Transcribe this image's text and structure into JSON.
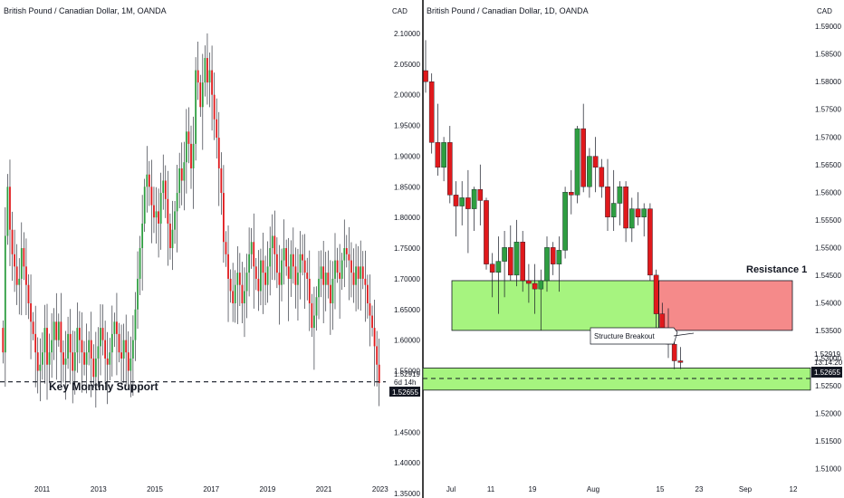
{
  "colors": {
    "up": "#2e9e41",
    "down": "#e0191c",
    "wick": "#131722",
    "support_fill": "#7fe85f",
    "resistance_fill": "#f27373",
    "divider": "#000000",
    "price_label_bg": "#131722",
    "price_label_text": "#ffffff"
  },
  "left": {
    "title": "British Pound / Canadian Dollar, 1M, OANDA",
    "currency": "CAD",
    "support_label": "Key Monthly Support",
    "price_label": "1.52919",
    "timer_label": "6d 14h",
    "current_price_label": "1.52655",
    "y_ticks": [
      "2.10000",
      "2.05000",
      "2.00000",
      "1.95000",
      "1.90000",
      "1.85000",
      "1.80000",
      "1.75000",
      "1.70000",
      "1.65000",
      "1.60000",
      "1.55000",
      "1.45000",
      "1.40000",
      "1.35000"
    ],
    "x_ticks": [
      "2011",
      "2013",
      "2015",
      "2017",
      "2019",
      "2021",
      "2023"
    ],
    "chart_data": {
      "type": "candlestick",
      "ylim": [
        1.35,
        2.125
      ],
      "x_range": [
        2009.5,
        2023.2
      ],
      "support_level": 1.532,
      "closes": [
        1.58,
        1.77,
        1.85,
        1.78,
        1.74,
        1.72,
        1.69,
        1.7,
        1.75,
        1.72,
        1.69,
        1.66,
        1.63,
        1.61,
        1.58,
        1.55,
        1.56,
        1.58,
        1.62,
        1.56,
        1.58,
        1.6,
        1.63,
        1.6,
        1.63,
        1.58,
        1.56,
        1.57,
        1.61,
        1.58,
        1.55,
        1.58,
        1.62,
        1.6,
        1.58,
        1.56,
        1.58,
        1.6,
        1.57,
        1.54,
        1.57,
        1.59,
        1.62,
        1.6,
        1.57,
        1.56,
        1.58,
        1.61,
        1.63,
        1.61,
        1.58,
        1.57,
        1.6,
        1.58,
        1.55,
        1.57,
        1.6,
        1.65,
        1.7,
        1.75,
        1.79,
        1.85,
        1.87,
        1.85,
        1.82,
        1.8,
        1.81,
        1.79,
        1.84,
        1.86,
        1.83,
        1.79,
        1.75,
        1.78,
        1.81,
        1.84,
        1.88,
        1.86,
        1.89,
        1.94,
        1.92,
        1.88,
        1.92,
        2.04,
        2.02,
        1.98,
        2.02,
        2.06,
        2.02,
        2.04,
        2.0,
        1.96,
        1.93,
        1.88,
        1.84,
        1.76,
        1.74,
        1.7,
        1.68,
        1.66,
        1.69,
        1.71,
        1.69,
        1.66,
        1.68,
        1.71,
        1.74,
        1.76,
        1.72,
        1.7,
        1.68,
        1.73,
        1.71,
        1.69,
        1.72,
        1.75,
        1.77,
        1.74,
        1.71,
        1.69,
        1.73,
        1.75,
        1.72,
        1.7,
        1.74,
        1.72,
        1.69,
        1.71,
        1.74,
        1.73,
        1.71,
        1.7,
        1.66,
        1.62,
        1.64,
        1.67,
        1.7,
        1.72,
        1.69,
        1.71,
        1.69,
        1.66,
        1.7,
        1.73,
        1.71,
        1.7,
        1.73,
        1.75,
        1.74,
        1.73,
        1.71,
        1.69,
        1.72,
        1.7,
        1.72,
        1.7,
        1.69,
        1.66,
        1.64,
        1.62,
        1.59,
        1.56,
        1.53
      ],
      "highs_up_to": 2.1,
      "lows_down_to": 1.49
    }
  },
  "right": {
    "title": "British Pound / Canadian Dollar, 1D, OANDA",
    "currency": "CAD",
    "resistance_label": "Resistance 1",
    "breakout_label": "Structure Breakout",
    "price_label": "1.52919",
    "timer_label": "13:14:20",
    "current_price_label": "1.52655",
    "y_ticks": [
      "1.59000",
      "1.58500",
      "1.58000",
      "1.57500",
      "1.57000",
      "1.56500",
      "1.56000",
      "1.55500",
      "1.55000",
      "1.54500",
      "1.54000",
      "1.53500",
      "1.53000",
      "1.52500",
      "1.52000",
      "1.51500",
      "1.51000"
    ],
    "x_ticks": [
      "Jul",
      "11",
      "19",
      "Aug",
      "15",
      "23",
      "Sep",
      "12"
    ],
    "chart_data": {
      "type": "candlestick",
      "ylim": [
        1.5055,
        1.5915
      ],
      "resistance_zone": [
        1.535,
        1.544
      ],
      "support_zone": [
        1.5242,
        1.5282
      ],
      "support_level": 1.5263,
      "resistance_zone_end_date": "Sep 12",
      "candles": [
        {
          "o": 1.582,
          "h": 1.5875,
          "l": 1.578,
          "c": 1.58
        },
        {
          "o": 1.58,
          "h": 1.5815,
          "l": 1.567,
          "c": 1.569
        },
        {
          "o": 1.569,
          "h": 1.576,
          "l": 1.563,
          "c": 1.5645
        },
        {
          "o": 1.5645,
          "h": 1.57,
          "l": 1.562,
          "c": 1.569
        },
        {
          "o": 1.569,
          "h": 1.572,
          "l": 1.558,
          "c": 1.5595
        },
        {
          "o": 1.5595,
          "h": 1.562,
          "l": 1.552,
          "c": 1.5575
        },
        {
          "o": 1.5575,
          "h": 1.562,
          "l": 1.554,
          "c": 1.559
        },
        {
          "o": 1.559,
          "h": 1.564,
          "l": 1.549,
          "c": 1.557
        },
        {
          "o": 1.557,
          "h": 1.561,
          "l": 1.553,
          "c": 1.5605
        },
        {
          "o": 1.5605,
          "h": 1.565,
          "l": 1.554,
          "c": 1.5585
        },
        {
          "o": 1.5585,
          "h": 1.559,
          "l": 1.546,
          "c": 1.547
        },
        {
          "o": 1.547,
          "h": 1.549,
          "l": 1.541,
          "c": 1.5455
        },
        {
          "o": 1.5455,
          "h": 1.552,
          "l": 1.538,
          "c": 1.5475
        },
        {
          "o": 1.5475,
          "h": 1.553,
          "l": 1.541,
          "c": 1.55
        },
        {
          "o": 1.55,
          "h": 1.554,
          "l": 1.544,
          "c": 1.545
        },
        {
          "o": 1.545,
          "h": 1.555,
          "l": 1.543,
          "c": 1.551
        },
        {
          "o": 1.551,
          "h": 1.553,
          "l": 1.542,
          "c": 1.544
        },
        {
          "o": 1.544,
          "h": 1.547,
          "l": 1.54,
          "c": 1.5435
        },
        {
          "o": 1.5435,
          "h": 1.547,
          "l": 1.538,
          "c": 1.5425
        },
        {
          "o": 1.5425,
          "h": 1.546,
          "l": 1.535,
          "c": 1.544
        },
        {
          "o": 1.544,
          "h": 1.552,
          "l": 1.542,
          "c": 1.55
        },
        {
          "o": 1.55,
          "h": 1.551,
          "l": 1.545,
          "c": 1.547
        },
        {
          "o": 1.547,
          "h": 1.552,
          "l": 1.542,
          "c": 1.5495
        },
        {
          "o": 1.5495,
          "h": 1.561,
          "l": 1.548,
          "c": 1.56
        },
        {
          "o": 1.56,
          "h": 1.564,
          "l": 1.556,
          "c": 1.5595
        },
        {
          "o": 1.5595,
          "h": 1.572,
          "l": 1.558,
          "c": 1.5715
        },
        {
          "o": 1.5715,
          "h": 1.576,
          "l": 1.56,
          "c": 1.561
        },
        {
          "o": 1.561,
          "h": 1.568,
          "l": 1.559,
          "c": 1.5665
        },
        {
          "o": 1.5665,
          "h": 1.57,
          "l": 1.56,
          "c": 1.5645
        },
        {
          "o": 1.5645,
          "h": 1.566,
          "l": 1.559,
          "c": 1.561
        },
        {
          "o": 1.561,
          "h": 1.566,
          "l": 1.553,
          "c": 1.5555
        },
        {
          "o": 1.5555,
          "h": 1.564,
          "l": 1.553,
          "c": 1.558
        },
        {
          "o": 1.558,
          "h": 1.562,
          "l": 1.554,
          "c": 1.561
        },
        {
          "o": 1.561,
          "h": 1.562,
          "l": 1.551,
          "c": 1.5535
        },
        {
          "o": 1.5535,
          "h": 1.559,
          "l": 1.551,
          "c": 1.557
        },
        {
          "o": 1.557,
          "h": 1.56,
          "l": 1.554,
          "c": 1.5555
        },
        {
          "o": 1.5555,
          "h": 1.558,
          "l": 1.552,
          "c": 1.557
        },
        {
          "o": 1.557,
          "h": 1.558,
          "l": 1.544,
          "c": 1.545
        },
        {
          "o": 1.545,
          "h": 1.546,
          "l": 1.535,
          "c": 1.538
        },
        {
          "o": 1.538,
          "h": 1.54,
          "l": 1.533,
          "c": 1.5345
        },
        {
          "o": 1.5345,
          "h": 1.539,
          "l": 1.53,
          "c": 1.5325
        },
        {
          "o": 1.5325,
          "h": 1.534,
          "l": 1.528,
          "c": 1.5295
        },
        {
          "o": 1.5295,
          "h": 1.532,
          "l": 1.528,
          "c": 1.5292
        }
      ]
    }
  }
}
